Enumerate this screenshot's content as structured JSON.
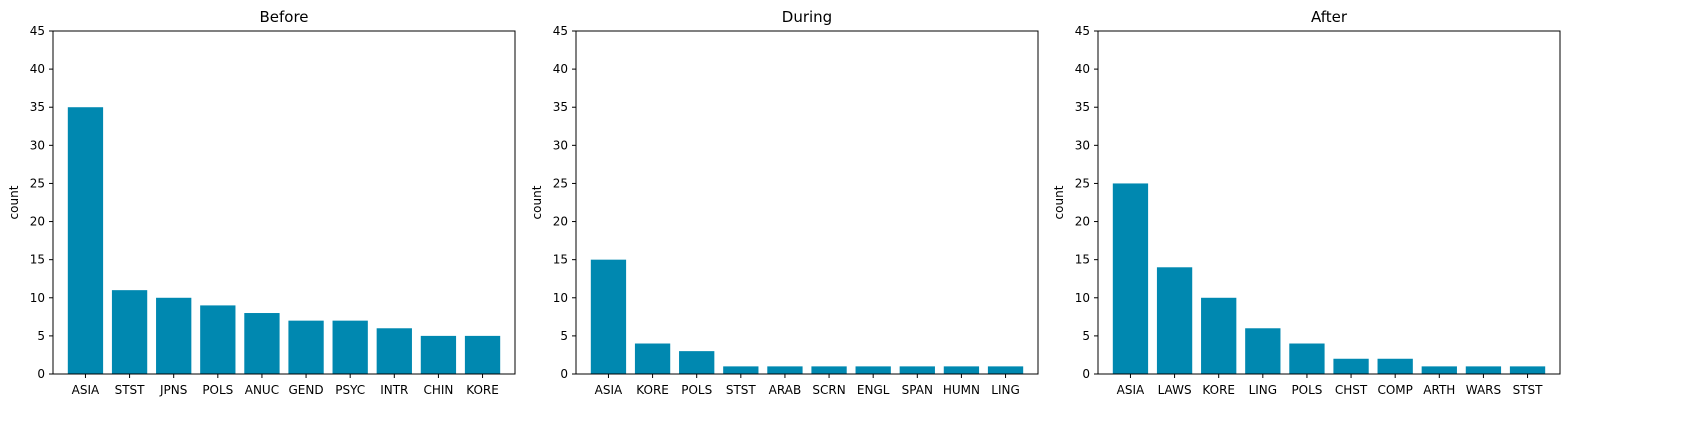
{
  "chart_data": [
    {
      "type": "bar",
      "title": "Before",
      "xlabel": "",
      "ylabel": "count",
      "ylim": [
        0,
        45
      ],
      "yticks": [
        0,
        5,
        10,
        15,
        20,
        25,
        30,
        35,
        40,
        45
      ],
      "categories": [
        "ASIA",
        "STST",
        "JPNS",
        "POLS",
        "ANUC",
        "GEND",
        "PSYC",
        "INTR",
        "CHIN",
        "KORE"
      ],
      "values": [
        35,
        11,
        10,
        9,
        8,
        7,
        7,
        6,
        5,
        5
      ],
      "color": "#0088b0",
      "grid": false
    },
    {
      "type": "bar",
      "title": "During",
      "xlabel": "",
      "ylabel": "count",
      "ylim": [
        0,
        45
      ],
      "yticks": [
        0,
        5,
        10,
        15,
        20,
        25,
        30,
        35,
        40,
        45
      ],
      "categories": [
        "ASIA",
        "KORE",
        "POLS",
        "STST",
        "ARAB",
        "SCRN",
        "ENGL",
        "SPAN",
        "HUMN",
        "LING"
      ],
      "values": [
        15,
        4,
        3,
        1,
        1,
        1,
        1,
        1,
        1,
        1
      ],
      "color": "#0088b0",
      "grid": false
    },
    {
      "type": "bar",
      "title": "After",
      "xlabel": "",
      "ylabel": "count",
      "ylim": [
        0,
        45
      ],
      "yticks": [
        0,
        5,
        10,
        15,
        20,
        25,
        30,
        35,
        40,
        45
      ],
      "categories": [
        "ASIA",
        "LAWS",
        "KORE",
        "LING",
        "POLS",
        "CHST",
        "COMP",
        "ARTH",
        "WARS",
        "STST"
      ],
      "values": [
        25,
        14,
        10,
        6,
        4,
        2,
        2,
        1,
        1,
        1
      ],
      "color": "#0088b0",
      "grid": false
    }
  ]
}
